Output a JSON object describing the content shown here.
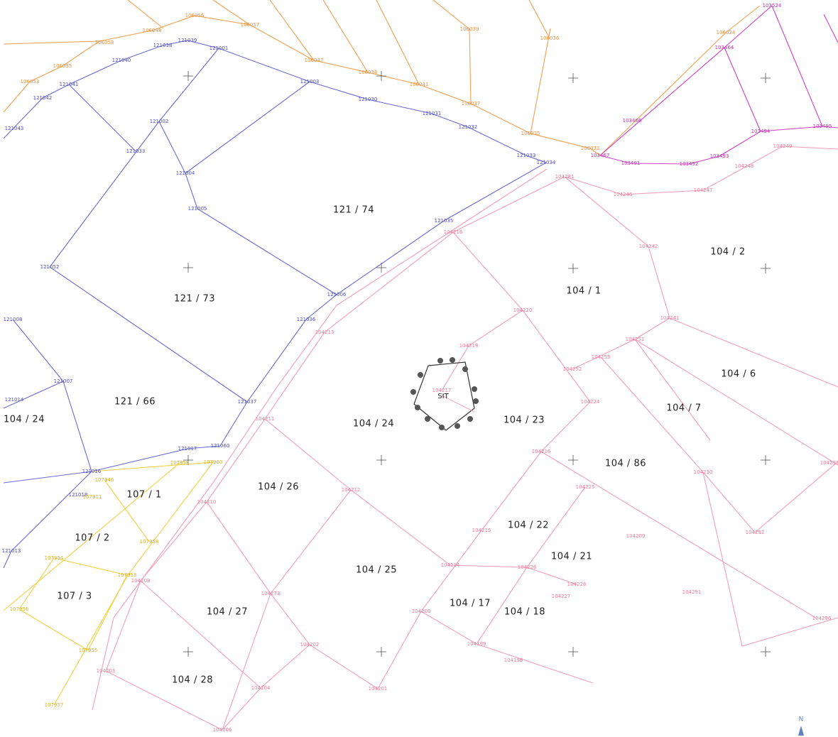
{
  "parcels": [
    "121 / 74",
    "121 / 73",
    "121 / 66",
    "104 / 24",
    "104 / 2",
    "104 / 1",
    "104 / 6",
    "104 / 7",
    "104 / 23",
    "104 / 24",
    "104 / 86",
    "104 / 26",
    "107 / 1",
    "107 / 2",
    "104 / 22",
    "104 / 21",
    "104 / 25",
    "107 / 3",
    "104 / 17",
    "104 / 18",
    "104 / 27",
    "104 / 28"
  ],
  "site_label": "SIT",
  "north_label": "N",
  "vertices": {
    "orange": [
      "106056",
      "106057",
      "106048",
      "106058",
      "106055",
      "106053",
      "106047",
      "106038",
      "106041",
      "106037",
      "106035",
      "106039",
      "106036",
      "106033",
      "106024"
    ],
    "blue": [
      "121039",
      "121038",
      "121001",
      "121040",
      "121041",
      "121042",
      "121043",
      "121003",
      "121030",
      "121031",
      "121032",
      "121002",
      "121033",
      "121004",
      "121005",
      "121033",
      "121034",
      "121035",
      "121052",
      "121006",
      "121036",
      "121008",
      "121007",
      "121014",
      "121037",
      "121017",
      "121060",
      "121016",
      "121018",
      "121013"
    ],
    "magenta": [
      "103524",
      "103464",
      "103466",
      "103494",
      "103495",
      "103467",
      "103491",
      "103492",
      "103493"
    ],
    "pink": [
      "104281",
      "104246",
      "104247",
      "104249",
      "104248",
      "104216",
      "104242",
      "104220",
      "104241",
      "104251",
      "104213",
      "104219",
      "104253",
      "104252",
      "104217",
      "104224",
      "104211",
      "104216",
      "104225",
      "104230",
      "104212",
      "104210",
      "104215",
      "104209",
      "104292",
      "104214",
      "104226",
      "104228",
      "104227",
      "104273",
      "104291",
      "104200",
      "104199",
      "104198",
      "104202",
      "104209",
      "104203",
      "104204",
      "104201",
      "104206",
      "104296",
      "104293"
    ],
    "yellow": [
      "107959",
      "107960",
      "107946",
      "107911",
      "107958",
      "107954",
      "107953",
      "107956",
      "107955",
      "107957"
    ]
  }
}
